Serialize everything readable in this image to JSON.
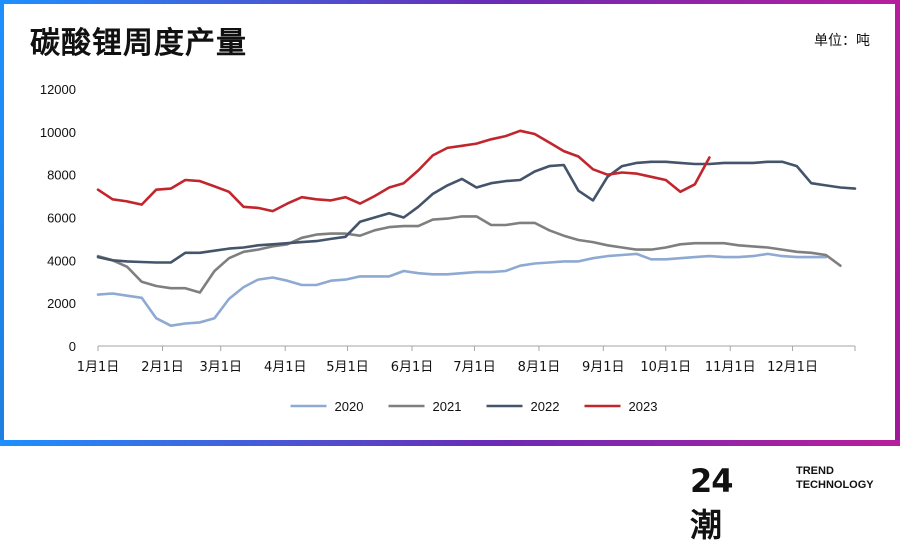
{
  "header": {
    "title": "碳酸锂周度产量",
    "unit": "单位：吨"
  },
  "footer": {
    "logo_mark": "24潮",
    "logo_line1": "TREND",
    "logo_line2": "TECHNOLOGY"
  },
  "chart_data": {
    "type": "line",
    "title": "碳酸锂周度产量",
    "xlabel": "",
    "ylabel": "",
    "ylim": [
      0,
      12000
    ],
    "yticks": [
      0,
      2000,
      4000,
      6000,
      8000,
      10000,
      12000
    ],
    "week_range": [
      0,
      52
    ],
    "x_tick_labels": [
      "1月1日",
      "2月1日",
      "3月1日",
      "4月1日",
      "5月1日",
      "6月1日",
      "7月1日",
      "8月1日",
      "9月1日",
      "10月1日",
      "11月1日",
      "12月1日"
    ],
    "x_tick_weeks": [
      0,
      4.43,
      8.43,
      12.86,
      17.14,
      21.57,
      25.86,
      30.29,
      34.71,
      39,
      43.43,
      47.71
    ],
    "legend_position": "bottom",
    "series": [
      {
        "name": "2020",
        "color": "#8eaad2",
        "values": [
          2400,
          2450,
          2350,
          2250,
          1300,
          950,
          1050,
          1100,
          1300,
          2200,
          2750,
          3100,
          3200,
          3050,
          2850,
          2850,
          3050,
          3100,
          3250,
          3250,
          3250,
          3500,
          3400,
          3350,
          3350,
          3400,
          3450,
          3450,
          3500,
          3750,
          3850,
          3900,
          3950,
          3950,
          4100,
          4200,
          4250,
          4300,
          4050,
          4050,
          4100,
          4150,
          4200,
          4150,
          4150,
          4200,
          4300,
          4200,
          4150,
          4150,
          4150
        ]
      },
      {
        "name": "2021",
        "color": "#7f7f7f",
        "values": [
          4200,
          4000,
          3700,
          3000,
          2800,
          2700,
          2700,
          2500,
          3500,
          4100,
          4400,
          4500,
          4650,
          4750,
          5050,
          5200,
          5250,
          5250,
          5150,
          5400,
          5550,
          5600,
          5600,
          5900,
          5950,
          6050,
          6050,
          5650,
          5650,
          5750,
          5750,
          5400,
          5150,
          4950,
          4850,
          4700,
          4600,
          4500,
          4500,
          4600,
          4750,
          4800,
          4800,
          4800,
          4700,
          4650,
          4600,
          4500,
          4400,
          4350,
          4250,
          3750
        ]
      },
      {
        "name": "2022",
        "color": "#44546a",
        "values": [
          4150,
          4000,
          3950,
          3920,
          3900,
          3900,
          4350,
          4350,
          4450,
          4550,
          4600,
          4700,
          4750,
          4800,
          4850,
          4900,
          5000,
          5100,
          5800,
          6000,
          6200,
          6000,
          6500,
          7100,
          7500,
          7800,
          7400,
          7600,
          7700,
          7750,
          8150,
          8400,
          8450,
          7250,
          6800,
          7900,
          8400,
          8550,
          8600,
          8600,
          8550,
          8500,
          8500,
          8550,
          8550,
          8550,
          8600,
          8600,
          8400,
          7600,
          7500,
          7400,
          7350
        ]
      },
      {
        "name": "2023",
        "color": "#c0272d",
        "values": [
          7300,
          6850,
          6750,
          6600,
          7300,
          7350,
          7750,
          7700,
          7450,
          7200,
          6500,
          6450,
          6300,
          6650,
          6950,
          6850,
          6800,
          6950,
          6650,
          7000,
          7400,
          7600,
          8200,
          8900,
          9250,
          9350,
          9450,
          9650,
          9800,
          10050,
          9900,
          9500,
          9100,
          8850,
          8250,
          8000,
          8100,
          8050,
          7900,
          7750,
          7200,
          7550,
          8800
        ]
      }
    ]
  }
}
